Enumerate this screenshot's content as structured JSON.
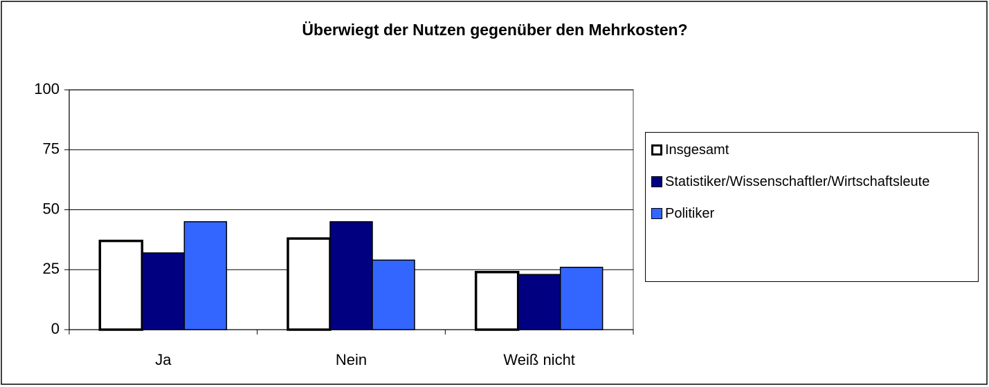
{
  "chart_data": {
    "type": "bar",
    "title": "Überwiegt der Nutzen gegenüber den Mehrkosten?",
    "categories": [
      "Ja",
      "Nein",
      "Weiß nicht"
    ],
    "series": [
      {
        "name": "Insgesamt",
        "color": "#ffffff",
        "values": [
          37,
          38,
          24
        ]
      },
      {
        "name": "Statistiker/Wissenschaftler/Wirtschaftsleute",
        "color": "#000080",
        "values": [
          32,
          45,
          23
        ]
      },
      {
        "name": "Politiker",
        "color": "#3366ff",
        "values": [
          45,
          29,
          26
        ]
      }
    ],
    "ylim": [
      0,
      100
    ],
    "yticks": [
      0,
      25,
      50,
      75,
      100
    ],
    "grid": true,
    "legend": "right"
  }
}
